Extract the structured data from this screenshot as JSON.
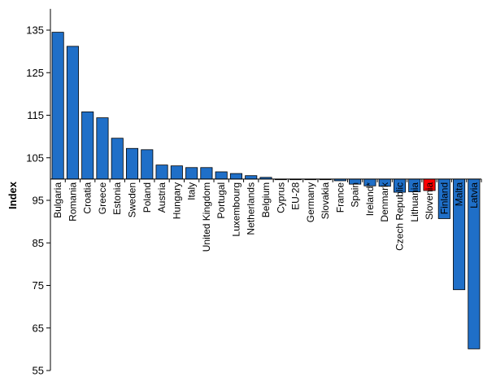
{
  "chart_data": {
    "type": "bar",
    "title": "",
    "xlabel": "",
    "ylabel": "Index",
    "ylim": [
      55,
      140
    ],
    "baseline": 100,
    "yticks": [
      55,
      65,
      75,
      85,
      95,
      105,
      115,
      125,
      135
    ],
    "grid": false,
    "legend": "none",
    "categories": [
      "Bulgaria",
      "Romania",
      "Croatia",
      "Greece",
      "Estonia",
      "Sweden",
      "Poland",
      "Austria",
      "Hungary",
      "Italy",
      "United Kingdom",
      "Portugal",
      "Luxembourg",
      "Netherlands",
      "Belgium",
      "Cyprus",
      "EU-28",
      "Germany",
      "Slovakia",
      "France",
      "Spain",
      "Ireland*",
      "Denmark",
      "Czech Republic",
      "Lithuania",
      "Slovenia",
      "Finland",
      "Malta",
      "Latvia"
    ],
    "values": [
      134.5,
      131.2,
      115.8,
      114.4,
      109.6,
      107.2,
      106.9,
      103.3,
      103.1,
      102.7,
      102.7,
      101.7,
      101.3,
      100.8,
      100.4,
      100.0,
      100.0,
      100.0,
      100.0,
      99.6,
      98.8,
      98.4,
      98.3,
      96.9,
      97.0,
      97.3,
      90.7,
      74.0,
      60.1
    ],
    "colors": {
      "default": "#1F6FC8",
      "highlight": "#FF0000",
      "highlight_category": "Slovenia",
      "edge": "#000000"
    }
  }
}
